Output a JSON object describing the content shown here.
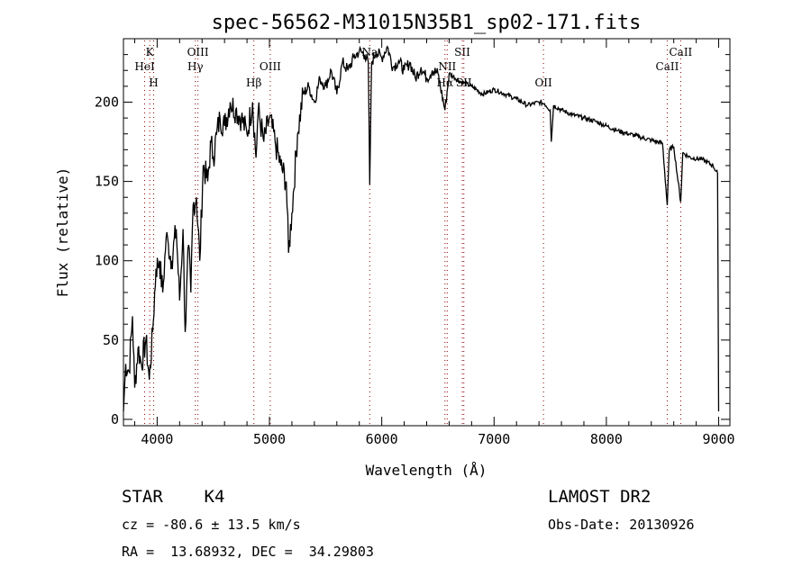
{
  "chart_data": {
    "type": "line",
    "title": "spec-56562-M31015N35B1_sp02-171.fits",
    "xlabel": "Wavelength (Å)",
    "ylabel": "Flux (relative)",
    "xlim": [
      3700,
      9100
    ],
    "ylim": [
      -4,
      240
    ],
    "xticks": [
      4000,
      5000,
      6000,
      7000,
      8000,
      9000
    ],
    "yticks": [
      0,
      50,
      100,
      150,
      200
    ],
    "grid": false,
    "series": [
      {
        "name": "spectrum",
        "x": [
          3700,
          3720,
          3750,
          3780,
          3800,
          3830,
          3860,
          3900,
          3930,
          3960,
          3990,
          4020,
          4050,
          4080,
          4100,
          4130,
          4170,
          4200,
          4230,
          4250,
          4280,
          4300,
          4320,
          4350,
          4380,
          4410,
          4450,
          4480,
          4500,
          4530,
          4560,
          4600,
          4650,
          4700,
          4750,
          4800,
          4850,
          4880,
          4900,
          4950,
          5000,
          5050,
          5100,
          5150,
          5170,
          5200,
          5250,
          5300,
          5350,
          5400,
          5450,
          5500,
          5550,
          5600,
          5650,
          5700,
          5750,
          5800,
          5850,
          5880,
          5893,
          5910,
          5950,
          6000,
          6050,
          6100,
          6150,
          6200,
          6250,
          6300,
          6350,
          6400,
          6450,
          6500,
          6563,
          6600,
          6700,
          6800,
          6900,
          7000,
          7100,
          7200,
          7300,
          7400,
          7450,
          7500,
          7510,
          7530,
          7600,
          7700,
          7800,
          7900,
          8000,
          8100,
          8200,
          8300,
          8400,
          8500,
          8542,
          8560,
          8600,
          8662,
          8680,
          8750,
          8850,
          8950,
          8990,
          9000
        ],
        "y": [
          5,
          35,
          30,
          65,
          20,
          45,
          35,
          50,
          25,
          55,
          95,
          100,
          80,
          115,
          110,
          100,
          120,
          75,
          120,
          55,
          110,
          80,
          135,
          140,
          100,
          160,
          150,
          175,
          165,
          180,
          190,
          185,
          200,
          195,
          190,
          180,
          200,
          165,
          195,
          175,
          190,
          175,
          160,
          150,
          105,
          130,
          180,
          205,
          210,
          200,
          215,
          210,
          220,
          205,
          225,
          220,
          228,
          232,
          230,
          225,
          148,
          225,
          232,
          228,
          235,
          222,
          226,
          220,
          225,
          215,
          222,
          215,
          220,
          218,
          195,
          218,
          213,
          210,
          205,
          208,
          205,
          202,
          198,
          200,
          199,
          195,
          175,
          198,
          195,
          192,
          190,
          188,
          185,
          182,
          180,
          178,
          176,
          174,
          135,
          170,
          172,
          137,
          168,
          165,
          164,
          160,
          155,
          5
        ]
      }
    ],
    "lines": [
      {
        "label": "K",
        "wave": 3934,
        "row": 0
      },
      {
        "label": "HeI",
        "wave": 3889,
        "row": 1
      },
      {
        "label": "H",
        "wave": 3969,
        "row": 2
      },
      {
        "label": "OIII",
        "wave": 4363,
        "row": 0
      },
      {
        "label": "Hγ",
        "wave": 4340,
        "row": 1
      },
      {
        "label": "OIII",
        "wave": 5007,
        "row": 1
      },
      {
        "label": "Hβ",
        "wave": 4861,
        "row": 2
      },
      {
        "label": "Na",
        "wave": 5893,
        "row": 0
      },
      {
        "label": "NII",
        "wave": 6583,
        "row": 1
      },
      {
        "label": "Hα",
        "wave": 6563,
        "row": 2
      },
      {
        "label": "SII",
        "wave": 6717,
        "row": 0
      },
      {
        "label": "SII",
        "wave": 6731,
        "row": 2
      },
      {
        "label": "OII",
        "wave": 7440,
        "row": 2
      },
      {
        "label": "CaII",
        "wave": 8542,
        "row": 1
      },
      {
        "label": "CaII",
        "wave": 8662,
        "row": 0
      }
    ],
    "line_color": "#8b0000"
  },
  "info": {
    "class": "STAR    K4",
    "cz": "cz = -80.6 ± 13.5 km/s",
    "coords": "RA =  13.68932, DEC =  34.29803",
    "survey": "LAMOST DR2",
    "obs_date": "Obs-Date: 20130926"
  }
}
